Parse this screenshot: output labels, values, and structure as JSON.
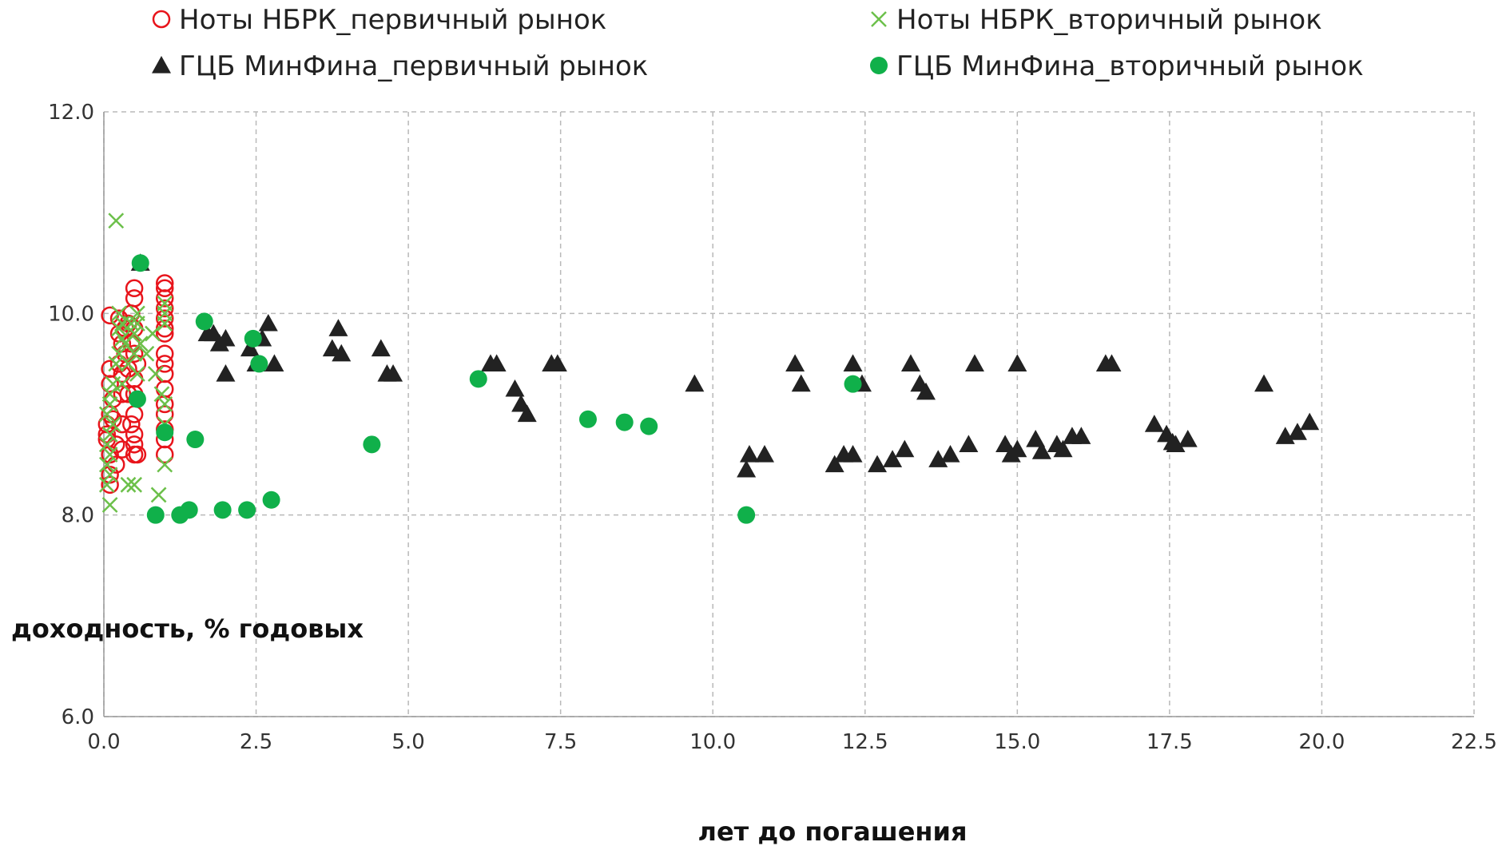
{
  "chart_data": {
    "type": "scatter",
    "title": "",
    "xlabel": "лет до погашения",
    "ylabel": "доходность, % годовых",
    "xlim": [
      0,
      22.5
    ],
    "ylim": [
      6,
      12
    ],
    "x_ticks": [
      "0.0",
      "2.5",
      "5.0",
      "7.5",
      "10.0",
      "12.5",
      "15.0",
      "17.5",
      "20.0",
      "22.5"
    ],
    "y_ticks": [
      "6.0",
      "8.0",
      "10.0",
      "12.0"
    ],
    "grid": true,
    "legend_position": "top",
    "series": [
      {
        "name": "Ноты НБРК_первичный рынок",
        "marker": "open-circle",
        "color": "#e8141b",
        "points": [
          [
            0.05,
            8.8
          ],
          [
            0.05,
            8.9
          ],
          [
            0.05,
            8.75
          ],
          [
            0.1,
            8.6
          ],
          [
            0.1,
            8.4
          ],
          [
            0.1,
            9.3
          ],
          [
            0.1,
            9.45
          ],
          [
            0.1,
            9.0
          ],
          [
            0.1,
            8.3
          ],
          [
            0.1,
            9.98
          ],
          [
            0.15,
            9.15
          ],
          [
            0.15,
            8.95
          ],
          [
            0.2,
            8.5
          ],
          [
            0.2,
            8.7
          ],
          [
            0.25,
            9.5
          ],
          [
            0.25,
            9.8
          ],
          [
            0.25,
            9.95
          ],
          [
            0.3,
            9.7
          ],
          [
            0.3,
            9.4
          ],
          [
            0.3,
            9.2
          ],
          [
            0.3,
            8.9
          ],
          [
            0.3,
            8.65
          ],
          [
            0.35,
            9.6
          ],
          [
            0.35,
            9.85
          ],
          [
            0.4,
            9.45
          ],
          [
            0.4,
            9.2
          ],
          [
            0.4,
            9.9
          ],
          [
            0.45,
            8.9
          ],
          [
            0.45,
            9.7
          ],
          [
            0.45,
            10.0
          ],
          [
            0.5,
            10.25
          ],
          [
            0.5,
            10.15
          ],
          [
            0.5,
            9.2
          ],
          [
            0.5,
            8.8
          ],
          [
            0.5,
            8.6
          ],
          [
            0.5,
            9.6
          ],
          [
            0.5,
            9.35
          ],
          [
            0.5,
            9.0
          ],
          [
            0.5,
            8.7
          ],
          [
            0.5,
            9.85
          ],
          [
            0.55,
            9.5
          ],
          [
            0.55,
            8.6
          ],
          [
            1.0,
            10.3
          ],
          [
            1.0,
            10.25
          ],
          [
            1.0,
            10.15
          ],
          [
            1.0,
            10.05
          ],
          [
            1.0,
            9.95
          ],
          [
            1.0,
            9.85
          ],
          [
            1.0,
            9.8
          ],
          [
            1.0,
            9.6
          ],
          [
            1.0,
            9.5
          ],
          [
            1.0,
            9.4
          ],
          [
            1.0,
            9.25
          ],
          [
            1.0,
            9.1
          ],
          [
            1.0,
            9.0
          ],
          [
            1.0,
            8.85
          ],
          [
            1.0,
            8.75
          ],
          [
            1.0,
            8.6
          ]
        ]
      },
      {
        "name": "Ноты НБРК_вторичный рынок",
        "marker": "x",
        "color": "#6cc04a",
        "points": [
          [
            0.05,
            8.3
          ],
          [
            0.05,
            8.5
          ],
          [
            0.05,
            8.7
          ],
          [
            0.05,
            9.0
          ],
          [
            0.1,
            8.1
          ],
          [
            0.1,
            8.4
          ],
          [
            0.1,
            8.6
          ],
          [
            0.1,
            8.8
          ],
          [
            0.1,
            9.1
          ],
          [
            0.1,
            9.2
          ],
          [
            0.15,
            9.3
          ],
          [
            0.15,
            8.9
          ],
          [
            0.2,
            10.92
          ],
          [
            0.2,
            9.5
          ],
          [
            0.25,
            10.0
          ],
          [
            0.25,
            9.85
          ],
          [
            0.25,
            9.6
          ],
          [
            0.3,
            9.75
          ],
          [
            0.3,
            9.9
          ],
          [
            0.3,
            9.3
          ],
          [
            0.35,
            9.7
          ],
          [
            0.4,
            8.3
          ],
          [
            0.4,
            9.5
          ],
          [
            0.45,
            9.9
          ],
          [
            0.5,
            8.3
          ],
          [
            0.5,
            9.8
          ],
          [
            0.5,
            9.6
          ],
          [
            0.55,
            10.0
          ],
          [
            0.55,
            9.9
          ],
          [
            0.55,
            9.4
          ],
          [
            0.6,
            9.7
          ],
          [
            0.7,
            9.6
          ],
          [
            0.8,
            9.8
          ],
          [
            0.85,
            9.4
          ],
          [
            0.9,
            8.2
          ],
          [
            0.95,
            9.2
          ],
          [
            1.0,
            8.5
          ],
          [
            1.0,
            8.9
          ],
          [
            1.0,
            9.1
          ],
          [
            1.0,
            9.9
          ],
          [
            1.0,
            10.1
          ],
          [
            1.0,
            10.0
          ]
        ]
      },
      {
        "name": "ГЦБ МинФина_первичный рынок",
        "marker": "filled-triangle",
        "color": "#222222",
        "points": [
          [
            0.6,
            10.5
          ],
          [
            1.7,
            9.8
          ],
          [
            1.8,
            9.8
          ],
          [
            1.9,
            9.7
          ],
          [
            2.0,
            9.75
          ],
          [
            2.0,
            9.4
          ],
          [
            2.4,
            9.65
          ],
          [
            2.5,
            9.5
          ],
          [
            2.6,
            9.75
          ],
          [
            2.7,
            9.9
          ],
          [
            2.8,
            9.5
          ],
          [
            3.75,
            9.65
          ],
          [
            3.85,
            9.85
          ],
          [
            3.9,
            9.6
          ],
          [
            4.55,
            9.65
          ],
          [
            4.65,
            9.4
          ],
          [
            4.75,
            9.4
          ],
          [
            6.35,
            9.5
          ],
          [
            6.45,
            9.5
          ],
          [
            6.75,
            9.25
          ],
          [
            6.85,
            9.1
          ],
          [
            6.95,
            9.0
          ],
          [
            7.35,
            9.5
          ],
          [
            7.45,
            9.5
          ],
          [
            9.7,
            9.3
          ],
          [
            10.55,
            8.45
          ],
          [
            10.6,
            8.6
          ],
          [
            10.85,
            8.6
          ],
          [
            11.35,
            9.5
          ],
          [
            11.45,
            9.3
          ],
          [
            12.0,
            8.5
          ],
          [
            12.15,
            8.6
          ],
          [
            12.3,
            8.6
          ],
          [
            12.3,
            9.5
          ],
          [
            12.45,
            9.3
          ],
          [
            12.7,
            8.5
          ],
          [
            12.95,
            8.55
          ],
          [
            13.15,
            8.65
          ],
          [
            13.25,
            9.5
          ],
          [
            13.4,
            9.3
          ],
          [
            13.5,
            9.22
          ],
          [
            13.7,
            8.55
          ],
          [
            13.9,
            8.6
          ],
          [
            14.2,
            8.7
          ],
          [
            14.3,
            9.5
          ],
          [
            14.8,
            8.7
          ],
          [
            14.9,
            8.6
          ],
          [
            15.0,
            8.65
          ],
          [
            15.0,
            9.5
          ],
          [
            15.3,
            8.75
          ],
          [
            15.4,
            8.63
          ],
          [
            15.65,
            8.7
          ],
          [
            15.75,
            8.65
          ],
          [
            15.9,
            8.78
          ],
          [
            16.05,
            8.78
          ],
          [
            16.45,
            9.5
          ],
          [
            16.55,
            9.5
          ],
          [
            17.25,
            8.9
          ],
          [
            17.45,
            8.8
          ],
          [
            17.55,
            8.72
          ],
          [
            17.6,
            8.7
          ],
          [
            17.8,
            8.75
          ],
          [
            19.05,
            9.3
          ],
          [
            19.4,
            8.78
          ],
          [
            19.6,
            8.82
          ],
          [
            19.8,
            8.92
          ]
        ]
      },
      {
        "name": "ГЦБ МинФина_вторичный рынок",
        "marker": "filled-circle",
        "color": "#10b04a",
        "points": [
          [
            0.6,
            10.5
          ],
          [
            0.55,
            9.15
          ],
          [
            1.0,
            8.82
          ],
          [
            1.5,
            8.75
          ],
          [
            1.65,
            9.92
          ],
          [
            0.85,
            8.0
          ],
          [
            1.25,
            8.0
          ],
          [
            1.4,
            8.05
          ],
          [
            1.95,
            8.05
          ],
          [
            2.35,
            8.05
          ],
          [
            2.45,
            9.75
          ],
          [
            2.55,
            9.5
          ],
          [
            2.75,
            8.15
          ],
          [
            4.4,
            8.7
          ],
          [
            6.15,
            9.35
          ],
          [
            7.95,
            8.95
          ],
          [
            8.55,
            8.92
          ],
          [
            8.95,
            8.88
          ],
          [
            10.55,
            8.0
          ],
          [
            12.3,
            9.3
          ]
        ]
      }
    ]
  }
}
